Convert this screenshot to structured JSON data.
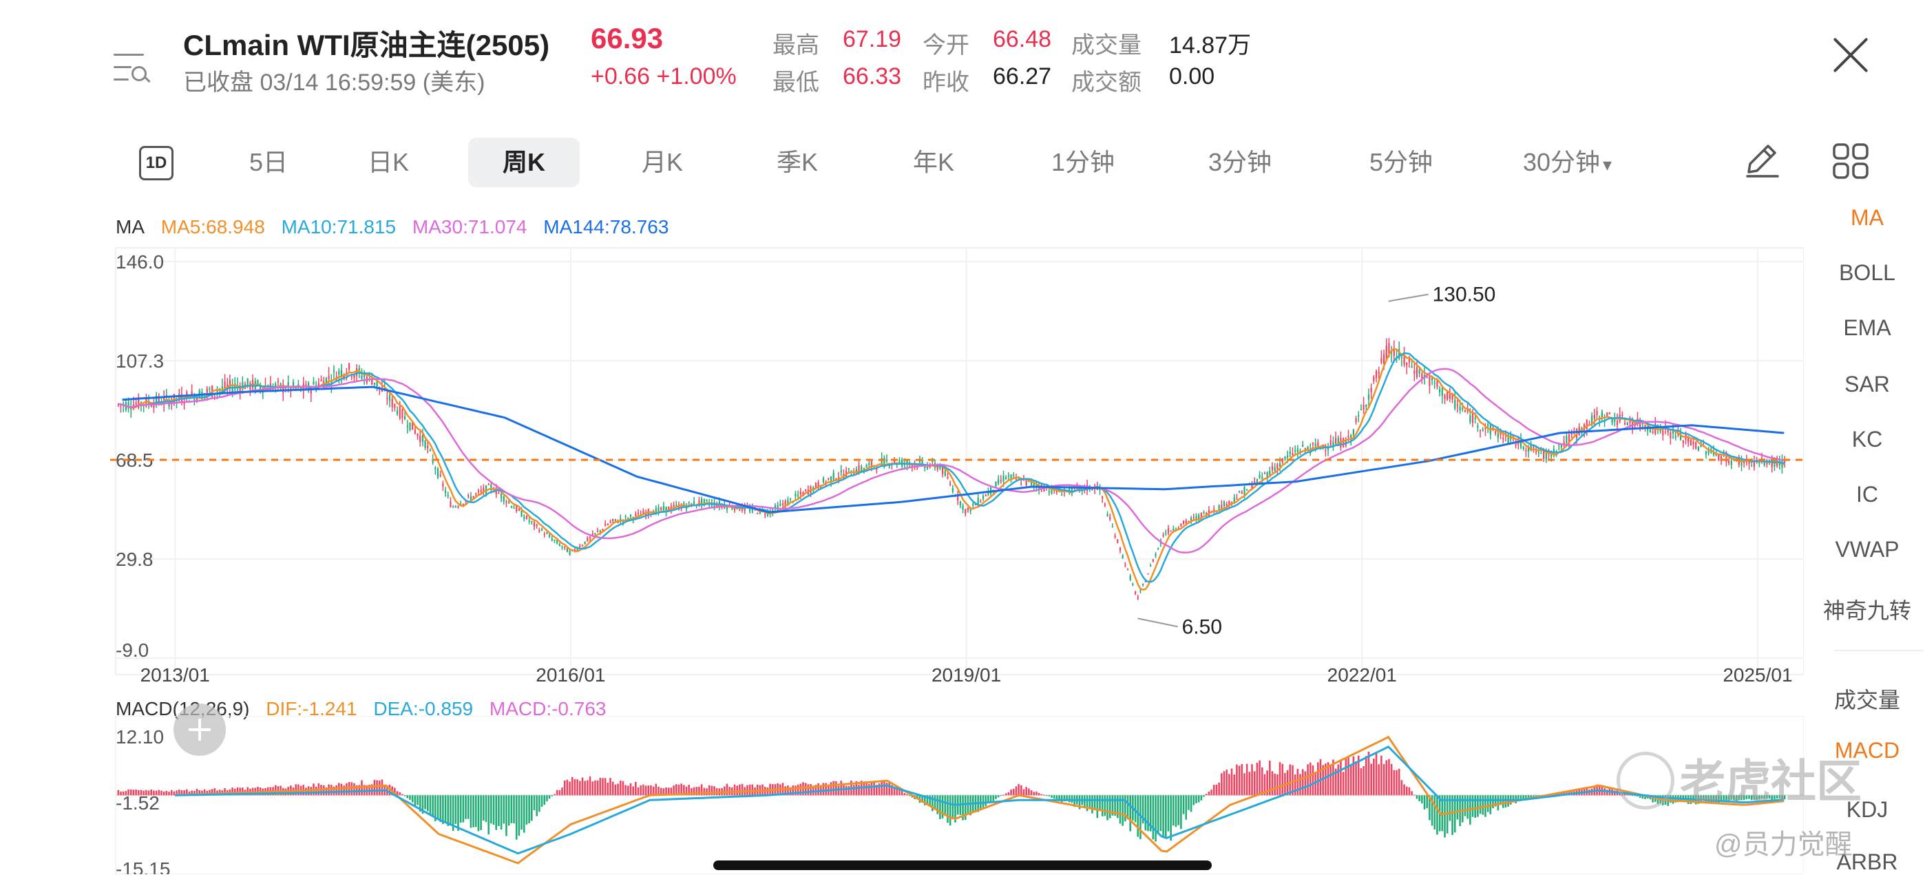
{
  "header": {
    "title": "CLmain  WTI原油主连(2505)",
    "price": "66.93",
    "status": "已收盘 03/14 16:59:59 (美东)",
    "change": "+0.66  +1.00%",
    "stats": [
      {
        "label": "最高",
        "value": "67.19",
        "color": "#e83150"
      },
      {
        "label": "今开",
        "value": "66.48",
        "color": "#e83150"
      },
      {
        "label": "成交量",
        "value": "14.87万",
        "color": "#222222"
      },
      {
        "label": "最低",
        "value": "66.33",
        "color": "#e83150"
      },
      {
        "label": "昨收",
        "value": "66.27",
        "color": "#222222"
      },
      {
        "label": "成交额",
        "value": "0.00",
        "color": "#222222"
      }
    ]
  },
  "tabs": {
    "icon_label": "1D",
    "items": [
      "5日",
      "日K",
      "周K",
      "月K",
      "季K",
      "年K",
      "1分钟",
      "3分钟",
      "5分钟",
      "30分钟"
    ],
    "active": "周K",
    "dropdown_arrow": "▾"
  },
  "sidebar": {
    "items": [
      "MA",
      "BOLL",
      "EMA",
      "SAR",
      "KC",
      "IC",
      "VWAP",
      "神奇九转",
      "成交量",
      "MACD",
      "KDJ",
      "ARBR"
    ],
    "active_color": "#f07a1a"
  },
  "ma_legend": {
    "prefix": "MA",
    "items": [
      {
        "text": "MA5:68.948",
        "color": "#f0902a"
      },
      {
        "text": "MA10:71.815",
        "color": "#27a9d9"
      },
      {
        "text": "MA30:71.074",
        "color": "#dd6ad8"
      },
      {
        "text": "MA144:78.763",
        "color": "#1a6ee6"
      }
    ]
  },
  "macd_legend": {
    "prefix": "MACD(12,26,9)",
    "items": [
      {
        "text": "DIF:-1.241",
        "color": "#f0902a"
      },
      {
        "text": "DEA:-0.859",
        "color": "#27a9d9"
      },
      {
        "text": "MACD:-0.763",
        "color": "#dd6ad8"
      }
    ]
  },
  "watermark": {
    "brand": "老虎社区",
    "user": "@员力觉醒"
  },
  "chart_data": [
    {
      "type": "candlestick",
      "title": "WTI weekly K",
      "x_ticks": [
        "2013/01",
        "2016/01",
        "2019/01",
        "2022/01",
        "2025/01"
      ],
      "y_ticks": [
        146.0,
        107.3,
        68.5,
        29.8,
        -9.0
      ],
      "y_tick_labels": [
        "146.0",
        "107.3",
        "68.5",
        "29.8",
        "-9.0"
      ],
      "ylim": [
        -9.0,
        146.0
      ],
      "reference_line": {
        "value": 68.5,
        "style": "dashed",
        "color": "#f07a1a"
      },
      "annotations": [
        {
          "label": "130.50",
          "x": 2022.2,
          "y": 130.5
        },
        {
          "label": "6.50",
          "x": 2020.3,
          "y": 6.5
        }
      ],
      "series": [
        {
          "name": "Close",
          "x": [
            2012.6,
            2013.0,
            2013.5,
            2014.0,
            2014.3,
            2014.5,
            2014.9,
            2015.1,
            2015.4,
            2015.7,
            2016.0,
            2016.3,
            2016.6,
            2017.0,
            2017.5,
            2018.0,
            2018.4,
            2018.8,
            2019.0,
            2019.3,
            2019.7,
            2020.0,
            2020.3,
            2020.5,
            2021.0,
            2021.5,
            2021.9,
            2022.2,
            2022.5,
            2022.9,
            2023.4,
            2023.8,
            2024.3,
            2024.8,
            2025.2
          ],
          "values": [
            90,
            92,
            98,
            96,
            104,
            100,
            75,
            50,
            58,
            44,
            32,
            44,
            48,
            52,
            48,
            62,
            68,
            66,
            48,
            62,
            56,
            58,
            14,
            40,
            52,
            72,
            76,
            112,
            100,
            82,
            70,
            86,
            80,
            68,
            67
          ]
        },
        {
          "name": "MA144",
          "x": [
            2012.6,
            2013.5,
            2014.5,
            2015.5,
            2016.5,
            2017.5,
            2018.5,
            2019.5,
            2020.5,
            2021.5,
            2022.5,
            2023.5,
            2024.5,
            2025.2
          ],
          "values": [
            92,
            95,
            97,
            85,
            62,
            48,
            52,
            58,
            57,
            60,
            68,
            79,
            82,
            79
          ]
        }
      ]
    },
    {
      "type": "bar",
      "title": "MACD(12,26,9)",
      "y_ticks": [
        12.1,
        -1.52,
        -15.15
      ],
      "y_tick_labels": [
        "12.10",
        "-1.52",
        "-15.15"
      ],
      "ylim": [
        -15.15,
        12.1
      ],
      "x": [
        2013.0,
        2014.0,
        2014.6,
        2015.0,
        2015.6,
        2016.0,
        2016.6,
        2017.5,
        2018.4,
        2018.9,
        2019.4,
        2020.2,
        2020.5,
        2021.0,
        2021.6,
        2022.2,
        2022.6,
        2023.2,
        2023.8,
        2024.3,
        2024.9,
        2025.2
      ],
      "series": [
        {
          "name": "DIF",
          "values": [
            0,
            1,
            2,
            -8,
            -14,
            -6,
            0,
            1,
            3,
            -5,
            0,
            -4,
            -12,
            -2,
            4,
            12,
            -4,
            -1,
            2,
            -1,
            -2,
            -1.2
          ]
        },
        {
          "name": "DEA",
          "values": [
            0,
            0.5,
            1,
            -5,
            -12,
            -8,
            -1,
            0,
            2,
            -2,
            -1,
            -1,
            -9,
            -4,
            2,
            10,
            -1,
            -1,
            1,
            -0.5,
            -1.5,
            -0.9
          ]
        },
        {
          "name": "MACD",
          "values": [
            1,
            2,
            3,
            -6,
            -8,
            4,
            2,
            2,
            3,
            -6,
            2,
            -6,
            -10,
            6,
            6,
            8,
            -8,
            -1,
            2,
            -2,
            -1,
            -0.8
          ]
        }
      ]
    }
  ]
}
